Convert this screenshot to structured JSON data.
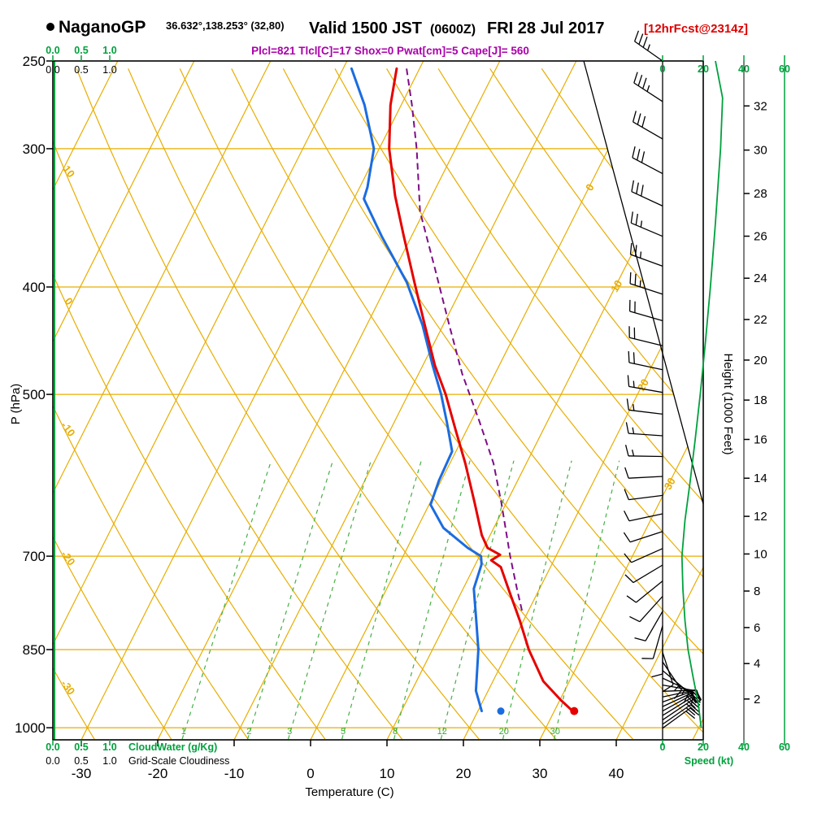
{
  "header": {
    "station": "NaganoGP",
    "coords": "36.632°,138.253° (32,80)",
    "valid_main": "Valid 1500 JST",
    "valid_zulu": "(0600Z)",
    "valid_date": "FRI 28 Jul 2017",
    "fcst_tag": "[12hrFcst@2314z]",
    "parcel_params": "Plcl=821 Tlcl[C]=17 Shox=0 Pwat[cm]=5 Cape[J]= 560"
  },
  "axis_titles": {
    "pressure": "P (hPa)",
    "temperature": "Temperature (C)",
    "height": "Height (1000 Feet)"
  },
  "legend": {
    "cloudwater": "CloudWater (g/Kg)",
    "cloudiness": "Grid-Scale Cloudiness",
    "speed": "Speed (kt)"
  },
  "colors": {
    "grid_orange": "#e8ad00",
    "mixing_green": "#45b045",
    "green": "#00a13d",
    "temperature_red": "#e60000",
    "dewpoint_blue": "#1b6ce0",
    "parcel_purple": "#7d0e86",
    "fcst_red": "#dd0000",
    "params_purple": "#aa00aa"
  },
  "chart_data": {
    "type": "skewt_logp_sounding",
    "pressure_axis": {
      "label": "P (hPa)",
      "ticks": [
        250,
        300,
        400,
        500,
        700,
        850,
        1000
      ],
      "gridlines": [
        300,
        400,
        500,
        700,
        850,
        1000
      ],
      "range": [
        250,
        1025
      ]
    },
    "temp_axis": {
      "label": "Temperature (C)",
      "ticks": [
        -30,
        -20,
        -10,
        0,
        10,
        20,
        30,
        40
      ],
      "unit": "C"
    },
    "height_axis": {
      "label": "Height (1000 Feet)",
      "ticks": [
        2,
        4,
        6,
        8,
        10,
        12,
        14,
        16,
        18,
        20,
        22,
        24,
        26,
        28,
        30,
        32
      ],
      "unit": "kft"
    },
    "speed_axis": {
      "label": "Speed (kt)",
      "ticks": [
        0,
        20,
        40,
        60
      ],
      "unit": "kt"
    },
    "cloud_axis": {
      "labels": [
        "0.0",
        "0.5",
        "1.0"
      ]
    },
    "skew_grid": {
      "isotherm_step_c": 10,
      "isotherm_range_c": [
        -80,
        50
      ],
      "isotherm_edge_labels": [
        0,
        10,
        20,
        30
      ],
      "dry_adiabat_theta_c": [
        -40,
        -30,
        -20,
        -10,
        0,
        10,
        20,
        30,
        40,
        50,
        60,
        70,
        80,
        90,
        100,
        110,
        120
      ],
      "dry_adiabat_edge_labels": [
        10,
        0,
        -10,
        -20,
        -30
      ],
      "mixing_ratio_gkg": [
        1,
        2,
        3,
        5,
        8,
        12,
        20,
        30
      ]
    },
    "temperature_c": [
      [
        254,
        -33.0
      ],
      [
        274,
        -31.4
      ],
      [
        300,
        -28.7
      ],
      [
        331,
        -24.8
      ],
      [
        360,
        -21.0
      ],
      [
        396,
        -16.6
      ],
      [
        433,
        -12.4
      ],
      [
        471,
        -8.4
      ],
      [
        500,
        -5.1
      ],
      [
        539,
        -1.4
      ],
      [
        577,
        2.0
      ],
      [
        626,
        5.8
      ],
      [
        670,
        8.9
      ],
      [
        688,
        10.5
      ],
      [
        698,
        12.6
      ],
      [
        706,
        11.8
      ],
      [
        716,
        13.5
      ],
      [
        753,
        16.2
      ],
      [
        800,
        19.5
      ],
      [
        850,
        22.6
      ],
      [
        908,
        26.6
      ],
      [
        945,
        30.2
      ],
      [
        966,
        32.4
      ]
    ],
    "dewpoint_c": [
      [
        254,
        -38.9
      ],
      [
        274,
        -34.8
      ],
      [
        300,
        -30.7
      ],
      [
        325,
        -29.0
      ],
      [
        333,
        -28.7
      ],
      [
        360,
        -23.9
      ],
      [
        396,
        -17.6
      ],
      [
        433,
        -12.7
      ],
      [
        471,
        -8.7
      ],
      [
        500,
        -5.7
      ],
      [
        530,
        -3.1
      ],
      [
        563,
        -0.5
      ],
      [
        598,
        -0.3
      ],
      [
        629,
        0.2
      ],
      [
        660,
        3.4
      ],
      [
        688,
        7.9
      ],
      [
        700,
        10.2
      ],
      [
        712,
        10.8
      ],
      [
        749,
        11.4
      ],
      [
        800,
        13.8
      ],
      [
        850,
        16.0
      ],
      [
        926,
        18.4
      ],
      [
        966,
        20.5
      ]
    ],
    "parcel_c": [
      [
        254,
        -31.7
      ],
      [
        274,
        -28.6
      ],
      [
        300,
        -25.1
      ],
      [
        342,
        -20.5
      ],
      [
        385,
        -14.8
      ],
      [
        433,
        -9.2
      ],
      [
        479,
        -4.3
      ],
      [
        530,
        1.2
      ],
      [
        577,
        5.7
      ],
      [
        626,
        9.3
      ],
      [
        700,
        14.0
      ],
      [
        750,
        17.1
      ],
      [
        790,
        19.5
      ]
    ],
    "surface_dots": {
      "temperature": {
        "p": 966,
        "value_c": 32.6
      },
      "dewpoint": {
        "p": 966,
        "value_c": 23.0
      }
    },
    "wind_barbs_p_dir_kt": [
      [
        250,
        305,
        35
      ],
      [
        272,
        303,
        35
      ],
      [
        294,
        300,
        30
      ],
      [
        316,
        298,
        30
      ],
      [
        338,
        295,
        30
      ],
      [
        360,
        293,
        25
      ],
      [
        383,
        290,
        25
      ],
      [
        406,
        288,
        25
      ],
      [
        429,
        286,
        20
      ],
      [
        452,
        284,
        20
      ],
      [
        475,
        282,
        20
      ],
      [
        498,
        280,
        15
      ],
      [
        521,
        277,
        15
      ],
      [
        545,
        274,
        15
      ],
      [
        569,
        271,
        15
      ],
      [
        593,
        267,
        10
      ],
      [
        617,
        263,
        10
      ],
      [
        641,
        258,
        10
      ],
      [
        665,
        252,
        10
      ],
      [
        689,
        246,
        10
      ],
      [
        713,
        239,
        10
      ],
      [
        737,
        231,
        10
      ],
      [
        761,
        222,
        10
      ],
      [
        785,
        210,
        10
      ],
      [
        809,
        196,
        10
      ],
      [
        833,
        180,
        10
      ],
      [
        855,
        162,
        10
      ],
      [
        872,
        146,
        15
      ],
      [
        888,
        130,
        15
      ],
      [
        902,
        115,
        15
      ],
      [
        915,
        100,
        15
      ],
      [
        927,
        88,
        15
      ],
      [
        938,
        78,
        20
      ],
      [
        948,
        70,
        20
      ],
      [
        957,
        65,
        20
      ],
      [
        966,
        61,
        20
      ],
      [
        975,
        58,
        20
      ],
      [
        984,
        56,
        20
      ],
      [
        993,
        55,
        18
      ],
      [
        1001,
        54,
        18
      ]
    ],
    "speed_profile_kt": [
      [
        250,
        26
      ],
      [
        270,
        29.5
      ],
      [
        300,
        28.5
      ],
      [
        350,
        26
      ],
      [
        400,
        23.5
      ],
      [
        450,
        21
      ],
      [
        500,
        18.5
      ],
      [
        550,
        16
      ],
      [
        600,
        13.5
      ],
      [
        650,
        11
      ],
      [
        700,
        9.5
      ],
      [
        750,
        10
      ],
      [
        800,
        11
      ],
      [
        850,
        12.5
      ],
      [
        900,
        15
      ],
      [
        950,
        17.5
      ],
      [
        1000,
        19
      ]
    ],
    "cloudwater_profile": {
      "note": "zero everywhere",
      "value_gkg": 0
    },
    "cloudiness_profile": {
      "note": "zero everywhere",
      "value": 0
    }
  }
}
